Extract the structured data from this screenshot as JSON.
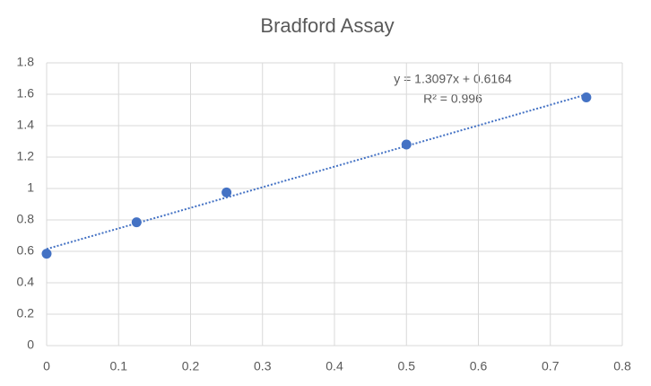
{
  "chart_data": {
    "type": "scatter",
    "title": "Bradford Assay",
    "x": [
      0,
      0.125,
      0.25,
      0.5,
      0.75
    ],
    "values": [
      0.585,
      0.785,
      0.975,
      1.28,
      1.58
    ],
    "color": "#4472c4",
    "xlim": [
      0,
      0.8
    ],
    "xticks": [
      0,
      0.1,
      0.2,
      0.3,
      0.4,
      0.5,
      0.6,
      0.7,
      0.8
    ],
    "ylim": [
      0,
      1.8
    ],
    "yticks": [
      0,
      0.2,
      0.4,
      0.6,
      0.8,
      1,
      1.2,
      1.4,
      1.6,
      1.8
    ],
    "grid": true,
    "trendline": "linear",
    "annotations": [
      "y = 1.3097x + 0.6164",
      "R² = 0.996"
    ]
  }
}
